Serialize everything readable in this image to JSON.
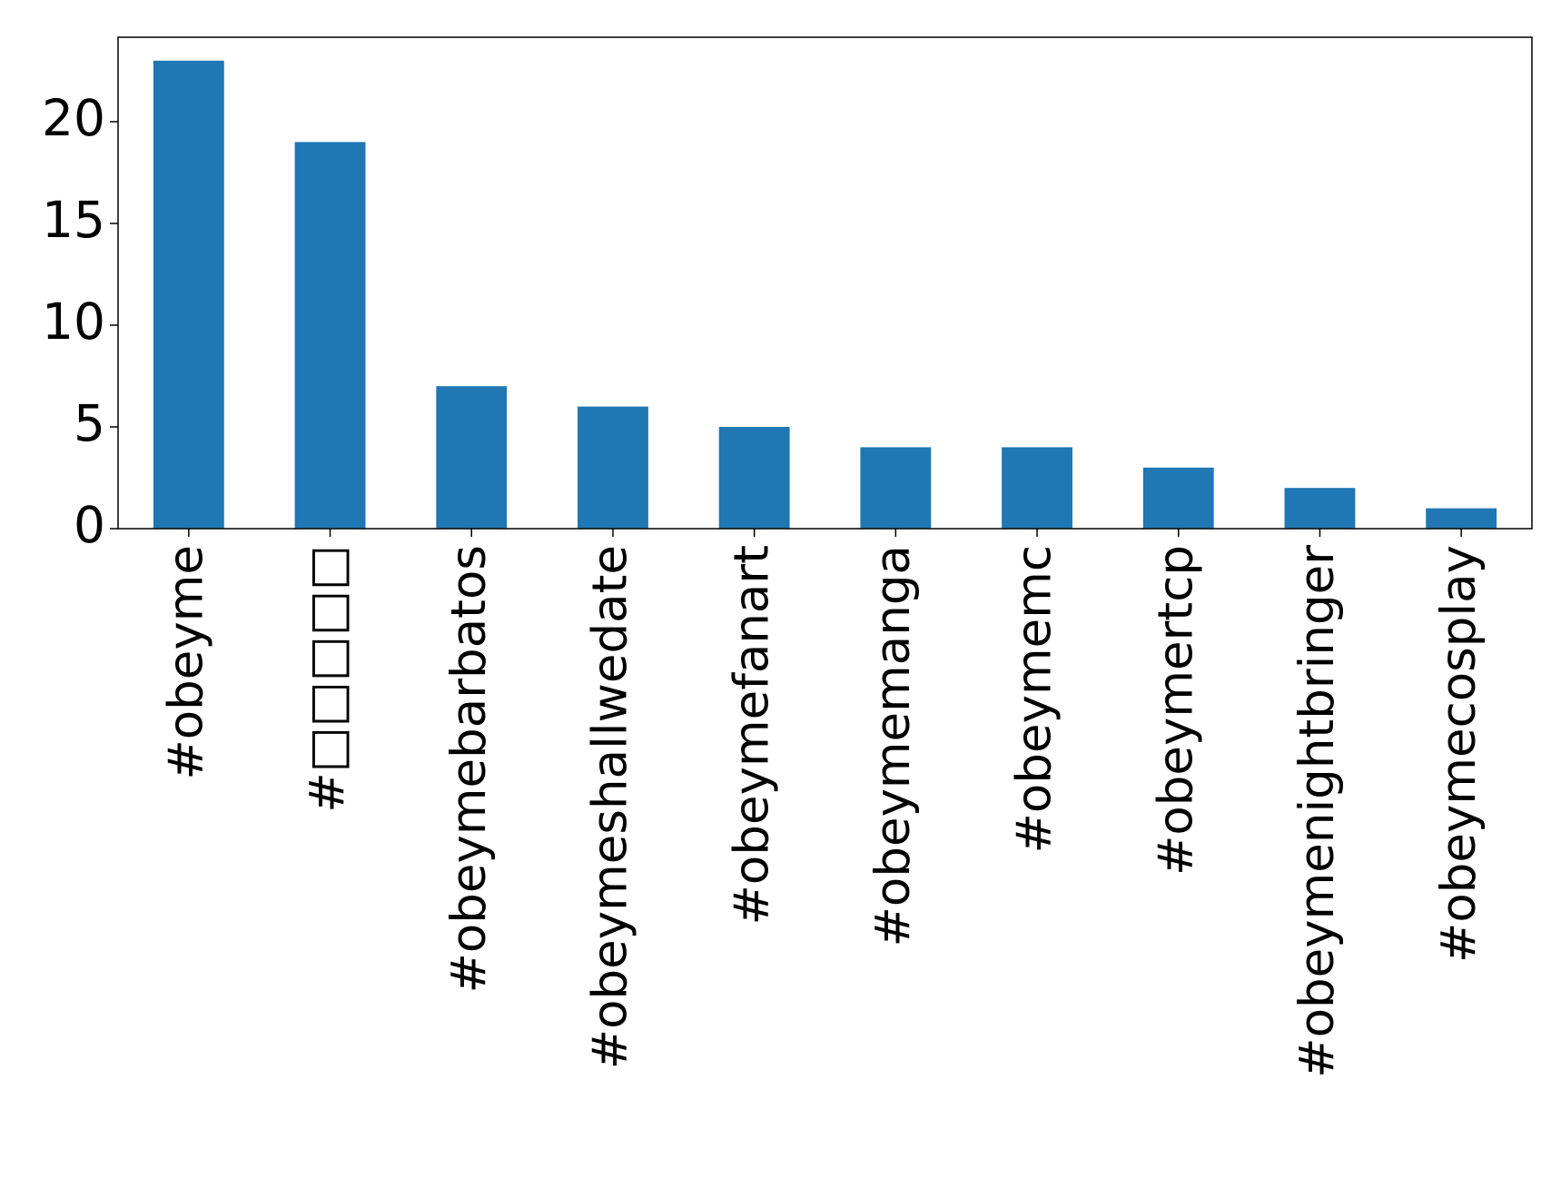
{
  "chart_data": {
    "type": "bar",
    "categories": [
      "#obeyme",
      "#□□□□□",
      "#obeymebarbatos",
      "#obeymeshallwedate",
      "#obeymefanart",
      "#obeymemanga",
      "#obeymemc",
      "#obeymertcp",
      "#obeymenightbringer",
      "#obeymecosplay"
    ],
    "values": [
      23,
      19,
      7,
      6,
      5,
      4,
      4,
      3,
      2,
      1
    ],
    "color": "#1f77b4",
    "ylim": [
      0,
      24.15
    ],
    "yticks": [
      0,
      5,
      10,
      15,
      20
    ],
    "grid": false
  }
}
